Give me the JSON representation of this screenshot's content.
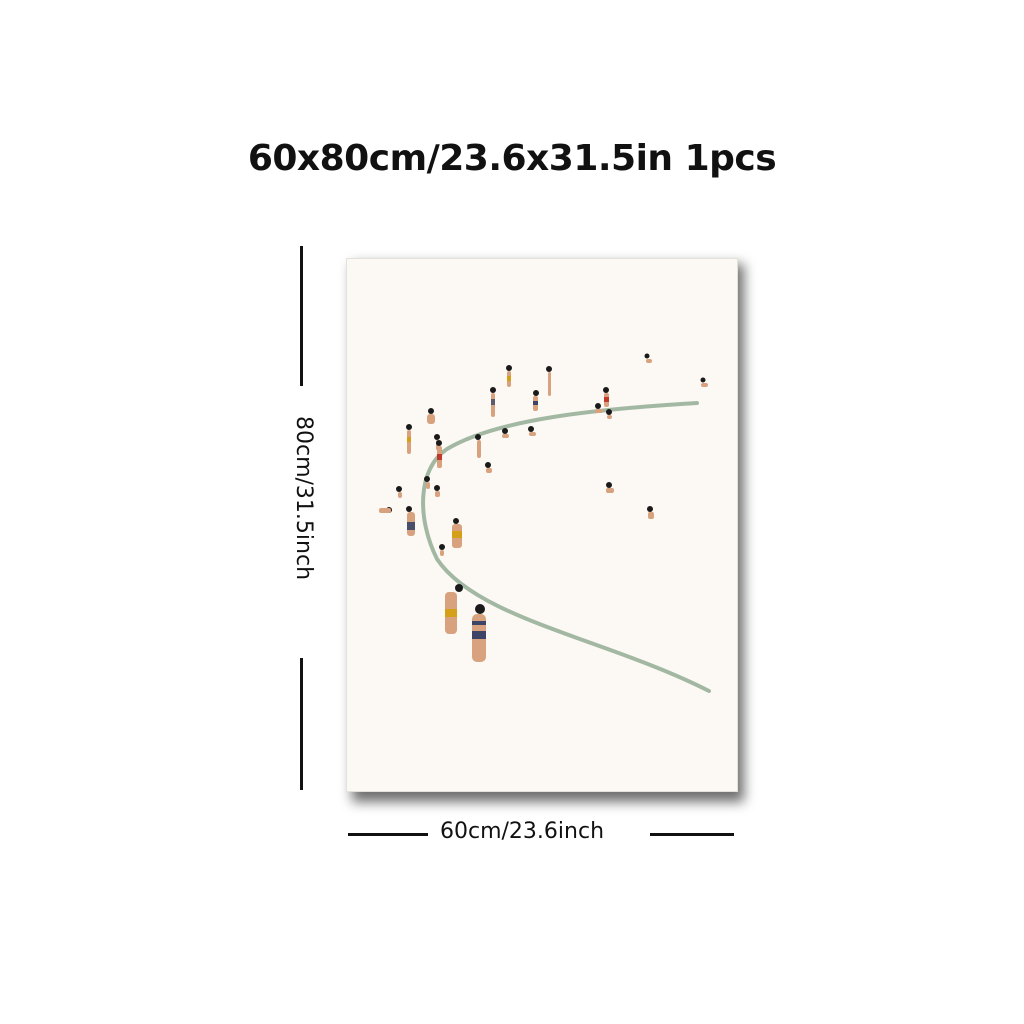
{
  "listing": {
    "title": "60x80cm/23.6x31.5in 1pcs",
    "height_label": "80cm/31.5inch",
    "width_label": "60cm/23.6inch"
  },
  "artwork": {
    "colors": {
      "background": "#fcf9f4",
      "shoreline": "#9fb4a0",
      "skin": "#d9a27f",
      "hair": "#1a1a1a"
    }
  }
}
